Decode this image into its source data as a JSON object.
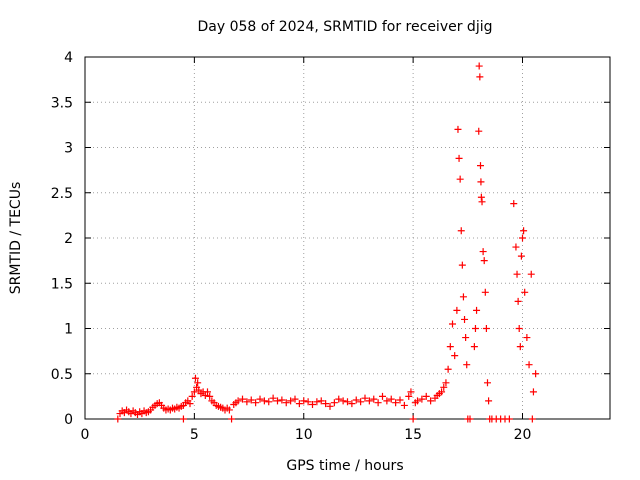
{
  "chart_data": {
    "type": "scatter",
    "title": "Day 058 of 2024, SRMTID for receiver djig",
    "xlabel": "GPS time / hours",
    "ylabel": "SRMTID / TECUs",
    "xlim": [
      0,
      24
    ],
    "ylim": [
      0,
      4
    ],
    "xticks": [
      0,
      5,
      10,
      15,
      20
    ],
    "yticks": [
      0,
      0.5,
      1,
      1.5,
      2,
      2.5,
      3,
      3.5,
      4
    ],
    "xtick_labels": [
      "0",
      "5",
      "10",
      "15",
      "20"
    ],
    "ytick_labels": [
      "0",
      "0.5",
      "1",
      "1.5",
      "2",
      "2.5",
      "3",
      "3.5",
      "4"
    ],
    "grid": true,
    "marker": "+",
    "color": "#ff0000",
    "series": [
      {
        "name": "SRMTID",
        "points": [
          [
            1.5,
            0.0
          ],
          [
            1.6,
            0.06
          ],
          [
            1.7,
            0.09
          ],
          [
            1.8,
            0.07
          ],
          [
            1.9,
            0.1
          ],
          [
            2.0,
            0.08
          ],
          [
            2.1,
            0.06
          ],
          [
            2.2,
            0.09
          ],
          [
            2.3,
            0.07
          ],
          [
            2.4,
            0.05
          ],
          [
            2.5,
            0.08
          ],
          [
            2.6,
            0.06
          ],
          [
            2.7,
            0.09
          ],
          [
            2.8,
            0.07
          ],
          [
            2.9,
            0.08
          ],
          [
            3.0,
            0.1
          ],
          [
            3.1,
            0.13
          ],
          [
            3.2,
            0.15
          ],
          [
            3.3,
            0.17
          ],
          [
            3.4,
            0.18
          ],
          [
            3.5,
            0.15
          ],
          [
            3.6,
            0.12
          ],
          [
            3.7,
            0.1
          ],
          [
            3.8,
            0.11
          ],
          [
            3.9,
            0.1
          ],
          [
            4.0,
            0.12
          ],
          [
            4.1,
            0.11
          ],
          [
            4.2,
            0.13
          ],
          [
            4.3,
            0.12
          ],
          [
            4.4,
            0.14
          ],
          [
            4.5,
            0.0
          ],
          [
            4.5,
            0.15
          ],
          [
            4.6,
            0.18
          ],
          [
            4.7,
            0.2
          ],
          [
            4.8,
            0.17
          ],
          [
            4.9,
            0.25
          ],
          [
            5.0,
            0.3
          ],
          [
            5.05,
            0.45
          ],
          [
            5.1,
            0.35
          ],
          [
            5.15,
            0.4
          ],
          [
            5.2,
            0.32
          ],
          [
            5.3,
            0.28
          ],
          [
            5.4,
            0.3
          ],
          [
            5.5,
            0.26
          ],
          [
            5.6,
            0.3
          ],
          [
            5.7,
            0.25
          ],
          [
            5.8,
            0.2
          ],
          [
            5.9,
            0.18
          ],
          [
            6.0,
            0.15
          ],
          [
            6.1,
            0.14
          ],
          [
            6.2,
            0.13
          ],
          [
            6.3,
            0.12
          ],
          [
            6.4,
            0.1
          ],
          [
            6.5,
            0.12
          ],
          [
            6.6,
            0.1
          ],
          [
            6.7,
            0.0
          ],
          [
            6.8,
            0.16
          ],
          [
            6.9,
            0.18
          ],
          [
            7.0,
            0.2
          ],
          [
            7.2,
            0.22
          ],
          [
            7.4,
            0.19
          ],
          [
            7.6,
            0.21
          ],
          [
            7.8,
            0.18
          ],
          [
            8.0,
            0.22
          ],
          [
            8.2,
            0.2
          ],
          [
            8.4,
            0.19
          ],
          [
            8.6,
            0.23
          ],
          [
            8.8,
            0.2
          ],
          [
            9.0,
            0.21
          ],
          [
            9.2,
            0.18
          ],
          [
            9.4,
            0.2
          ],
          [
            9.6,
            0.22
          ],
          [
            9.8,
            0.17
          ],
          [
            10.0,
            0.2
          ],
          [
            10.2,
            0.19
          ],
          [
            10.4,
            0.16
          ],
          [
            10.6,
            0.19
          ],
          [
            10.8,
            0.2
          ],
          [
            11.0,
            0.17
          ],
          [
            11.2,
            0.14
          ],
          [
            11.4,
            0.18
          ],
          [
            11.6,
            0.22
          ],
          [
            11.8,
            0.2
          ],
          [
            12.0,
            0.19
          ],
          [
            12.2,
            0.17
          ],
          [
            12.4,
            0.21
          ],
          [
            12.6,
            0.19
          ],
          [
            12.8,
            0.23
          ],
          [
            13.0,
            0.2
          ],
          [
            13.2,
            0.22
          ],
          [
            13.4,
            0.18
          ],
          [
            13.6,
            0.25
          ],
          [
            13.8,
            0.2
          ],
          [
            14.0,
            0.22
          ],
          [
            14.2,
            0.18
          ],
          [
            14.4,
            0.21
          ],
          [
            14.6,
            0.15
          ],
          [
            14.8,
            0.25
          ],
          [
            14.9,
            0.3
          ],
          [
            15.0,
            0.0
          ],
          [
            15.1,
            0.18
          ],
          [
            15.2,
            0.2
          ],
          [
            15.4,
            0.22
          ],
          [
            15.6,
            0.25
          ],
          [
            15.8,
            0.2
          ],
          [
            16.0,
            0.23
          ],
          [
            16.1,
            0.26
          ],
          [
            16.2,
            0.28
          ],
          [
            16.3,
            0.3
          ],
          [
            16.4,
            0.35
          ],
          [
            16.5,
            0.4
          ],
          [
            16.6,
            0.55
          ],
          [
            16.7,
            0.8
          ],
          [
            16.8,
            1.05
          ],
          [
            16.9,
            0.7
          ],
          [
            17.0,
            1.2
          ],
          [
            17.05,
            3.2
          ],
          [
            17.1,
            2.88
          ],
          [
            17.15,
            2.65
          ],
          [
            17.2,
            2.08
          ],
          [
            17.25,
            1.7
          ],
          [
            17.3,
            1.35
          ],
          [
            17.35,
            1.1
          ],
          [
            17.4,
            0.9
          ],
          [
            17.45,
            0.6
          ],
          [
            17.5,
            0.0
          ],
          [
            17.6,
            0.0
          ],
          [
            17.8,
            0.8
          ],
          [
            17.85,
            1.0
          ],
          [
            17.9,
            1.2
          ],
          [
            18.0,
            3.18
          ],
          [
            18.02,
            3.9
          ],
          [
            18.05,
            3.78
          ],
          [
            18.08,
            2.8
          ],
          [
            18.1,
            2.62
          ],
          [
            18.12,
            2.45
          ],
          [
            18.15,
            2.4
          ],
          [
            18.2,
            1.85
          ],
          [
            18.25,
            1.75
          ],
          [
            18.3,
            1.4
          ],
          [
            18.35,
            1.0
          ],
          [
            18.4,
            0.4
          ],
          [
            18.45,
            0.2
          ],
          [
            18.5,
            0.0
          ],
          [
            18.6,
            0.0
          ],
          [
            18.8,
            0.0
          ],
          [
            19.0,
            0.0
          ],
          [
            19.2,
            0.0
          ],
          [
            19.4,
            0.0
          ],
          [
            19.6,
            2.38
          ],
          [
            19.7,
            1.9
          ],
          [
            19.75,
            1.6
          ],
          [
            19.8,
            1.3
          ],
          [
            19.85,
            1.0
          ],
          [
            19.9,
            0.8
          ],
          [
            19.95,
            1.8
          ],
          [
            20.0,
            2.0
          ],
          [
            20.05,
            2.08
          ],
          [
            20.1,
            1.4
          ],
          [
            20.2,
            0.9
          ],
          [
            20.3,
            0.6
          ],
          [
            20.4,
            1.6
          ],
          [
            20.45,
            0.0
          ],
          [
            20.5,
            0.3
          ],
          [
            20.6,
            0.5
          ]
        ]
      }
    ]
  }
}
